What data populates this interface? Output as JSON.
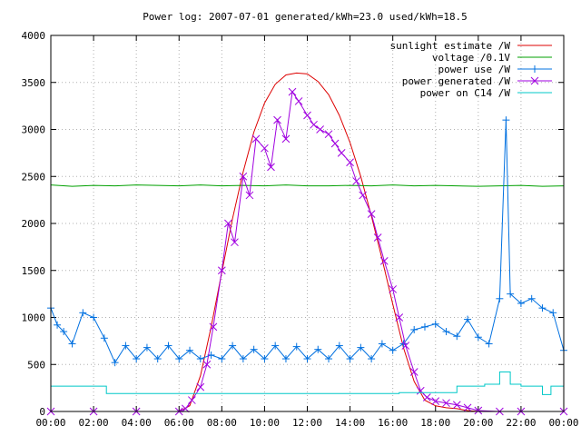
{
  "chart_data": {
    "type": "line",
    "title": "Power log: 2007-07-01 generated/kWh=23.0 used/kWh=18.5",
    "xlabel": "",
    "ylabel": "",
    "xlim": [
      0,
      24
    ],
    "ylim": [
      0,
      4000
    ],
    "x_tick_labels": [
      "00:00",
      "02:00",
      "04:00",
      "06:00",
      "08:00",
      "10:00",
      "12:00",
      "14:00",
      "16:00",
      "18:00",
      "20:00",
      "22:00",
      "00:00"
    ],
    "y_tick_labels": [
      "0",
      "500",
      "1000",
      "1500",
      "2000",
      "2500",
      "3000",
      "3500",
      "4000"
    ],
    "grid": true,
    "legend_position": "top-right",
    "series": [
      {
        "name": "sunlight estimate /W",
        "color": "#dd0000",
        "marker": "none",
        "x": [
          6.0,
          6.5,
          7.0,
          7.5,
          8.0,
          8.5,
          9.0,
          9.5,
          10.0,
          10.5,
          11.0,
          11.5,
          12.0,
          12.5,
          13.0,
          13.5,
          14.0,
          14.5,
          15.0,
          15.5,
          16.0,
          16.5,
          17.0,
          17.5,
          18.0,
          18.5,
          19.0,
          19.5,
          20.0,
          20.5,
          21.0
        ],
        "y": [
          0,
          60,
          380,
          900,
          1480,
          2050,
          2550,
          2970,
          3280,
          3480,
          3580,
          3600,
          3590,
          3510,
          3370,
          3150,
          2860,
          2500,
          2080,
          1620,
          1140,
          680,
          320,
          120,
          60,
          40,
          30,
          10,
          0,
          0,
          0
        ]
      },
      {
        "name": "voltage /0.1V",
        "color": "#00a000",
        "marker": "none",
        "x": [
          0,
          1,
          2,
          3,
          4,
          5,
          6,
          7,
          8,
          9,
          10,
          11,
          12,
          13,
          14,
          15,
          16,
          17,
          18,
          19,
          20,
          21,
          22,
          23,
          24
        ],
        "y": [
          2410,
          2395,
          2405,
          2400,
          2410,
          2405,
          2400,
          2410,
          2400,
          2405,
          2400,
          2410,
          2400,
          2400,
          2405,
          2400,
          2410,
          2400,
          2405,
          2400,
          2395,
          2400,
          2405,
          2395,
          2400
        ]
      },
      {
        "name": "power use /W",
        "color": "#0070e0",
        "marker": "plus",
        "x": [
          0,
          0.3,
          0.6,
          1.0,
          1.5,
          2.0,
          2.5,
          3.0,
          3.5,
          4.0,
          4.5,
          5.0,
          5.5,
          6.0,
          6.5,
          7.0,
          7.5,
          8.0,
          8.5,
          9.0,
          9.5,
          10.0,
          10.5,
          11.0,
          11.5,
          12.0,
          12.5,
          13.0,
          13.5,
          14.0,
          14.5,
          15.0,
          15.5,
          16.0,
          16.5,
          17.0,
          17.5,
          18.0,
          18.5,
          19.0,
          19.5,
          20.0,
          20.5,
          21.0,
          21.3,
          21.5,
          22.0,
          22.5,
          23.0,
          23.5,
          24.0
        ],
        "y": [
          1100,
          920,
          850,
          720,
          1050,
          1000,
          780,
          520,
          700,
          560,
          680,
          560,
          700,
          560,
          650,
          560,
          600,
          560,
          700,
          560,
          660,
          560,
          700,
          560,
          690,
          560,
          660,
          560,
          700,
          560,
          680,
          560,
          720,
          650,
          720,
          870,
          900,
          930,
          850,
          800,
          980,
          790,
          720,
          1200,
          3100,
          1250,
          1150,
          1200,
          1100,
          1050,
          650
        ]
      },
      {
        "name": "power generated /W",
        "color": "#a000e0",
        "marker": "cross",
        "x": [
          0,
          2,
          4,
          6.0,
          6.3,
          6.6,
          7.0,
          7.3,
          7.6,
          8.0,
          8.3,
          8.6,
          9.0,
          9.3,
          9.6,
          10.0,
          10.3,
          10.6,
          11.0,
          11.3,
          11.6,
          12.0,
          12.3,
          12.6,
          13.0,
          13.3,
          13.6,
          14.0,
          14.3,
          14.6,
          15.0,
          15.3,
          15.6,
          16.0,
          16.3,
          16.6,
          17.0,
          17.3,
          17.6,
          18.0,
          18.5,
          19.0,
          19.5,
          20.0,
          21.0,
          22.0,
          24.0
        ],
        "y": [
          0,
          0,
          0,
          0,
          30,
          120,
          260,
          500,
          900,
          1500,
          2000,
          1800,
          2500,
          2300,
          2900,
          2800,
          2600,
          3100,
          2900,
          3400,
          3300,
          3150,
          3050,
          3000,
          2950,
          2850,
          2750,
          2650,
          2450,
          2300,
          2100,
          1850,
          1600,
          1300,
          1000,
          700,
          420,
          220,
          150,
          110,
          90,
          70,
          40,
          10,
          0,
          0,
          0
        ]
      },
      {
        "name": "power on C14 /W",
        "color": "#00c8c8",
        "marker": "none",
        "x": [
          0,
          2.6,
          2.6,
          16.3,
          16.3,
          19.0,
          19.0,
          20.3,
          20.3,
          21.0,
          21.0,
          21.5,
          21.5,
          22.0,
          22.0,
          23.0,
          23.0,
          23.4,
          23.4,
          24.0
        ],
        "y": [
          270,
          270,
          190,
          190,
          200,
          200,
          270,
          270,
          290,
          290,
          420,
          420,
          290,
          290,
          270,
          270,
          180,
          180,
          270,
          270
        ]
      }
    ]
  }
}
